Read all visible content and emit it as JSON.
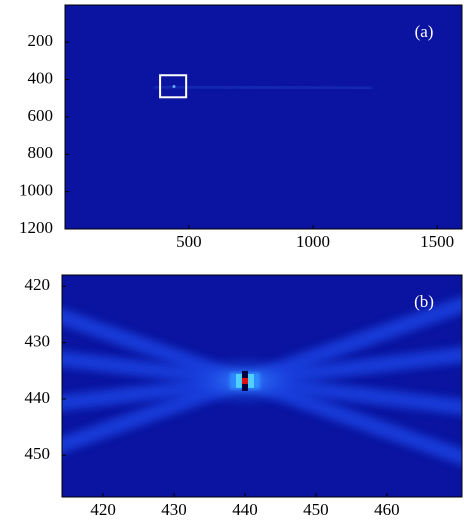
{
  "chart_data": [
    {
      "type": "heatmap",
      "label": "(a)",
      "colormap": "jet",
      "y_inverted": true,
      "xlim": [
        1,
        1600
      ],
      "ylim": [
        1,
        1200
      ],
      "xticks": [
        500,
        1000,
        1500
      ],
      "yticks": [
        200,
        400,
        600,
        800,
        1000,
        1200
      ],
      "highlight_box": {
        "x": [
          384,
          489
        ],
        "y": [
          377,
          495
        ],
        "color": "#ffffff"
      },
      "peak": {
        "x": 440,
        "y": 437
      }
    },
    {
      "type": "heatmap",
      "label": "(b)",
      "colormap": "jet",
      "y_inverted": true,
      "xlim": [
        414.2,
        470.6
      ],
      "ylim": [
        418,
        457.4
      ],
      "xticks": [
        420,
        430,
        440,
        450,
        460
      ],
      "yticks": [
        420,
        430,
        440,
        450
      ],
      "peak": {
        "x": 440,
        "y": 436.8
      }
    }
  ]
}
